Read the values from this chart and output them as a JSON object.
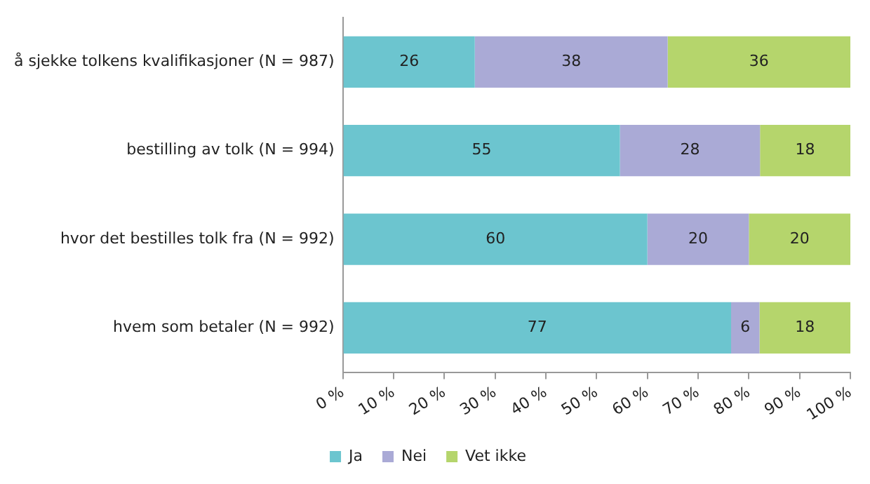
{
  "chart_data": {
    "type": "bar",
    "orientation": "horizontal",
    "stacked": true,
    "categories": [
      "å sjekke tolkens kvalifikasjoner (N = 987)",
      "bestilling av tolk (N = 994)",
      "hvor det bestilles tolk fra (N = 992)",
      "hvem som betaler (N = 992)"
    ],
    "series": [
      {
        "name": "Ja",
        "color": "#6cc5cf",
        "values": [
          26,
          54.6,
          60,
          76.5
        ],
        "value_labels": [
          "26",
          "55",
          "60",
          "77"
        ]
      },
      {
        "name": "Nei",
        "color": "#aaaad6",
        "values": [
          38,
          27.6,
          20,
          5.6
        ],
        "value_labels": [
          "38",
          "28",
          "20",
          "6"
        ]
      },
      {
        "name": "Vet ikke",
        "color": "#b5d56c",
        "values": [
          36,
          17.8,
          20,
          17.9
        ],
        "value_labels": [
          "36",
          "18",
          "20",
          "18"
        ]
      }
    ],
    "xlim": [
      0,
      100
    ],
    "xticks": [
      {
        "value": 0,
        "label": "0 %"
      },
      {
        "value": 10,
        "label": "10 %"
      },
      {
        "value": 20,
        "label": "20 %"
      },
      {
        "value": 30,
        "label": "30 %"
      },
      {
        "value": 40,
        "label": "40 %"
      },
      {
        "value": 50,
        "label": "50 %"
      },
      {
        "value": 60,
        "label": "60 %"
      },
      {
        "value": 70,
        "label": "70 %"
      },
      {
        "value": 80,
        "label": "80 %"
      },
      {
        "value": 90,
        "label": "90 %"
      },
      {
        "value": 100,
        "label": "100 %"
      }
    ],
    "legend": "bottom"
  }
}
